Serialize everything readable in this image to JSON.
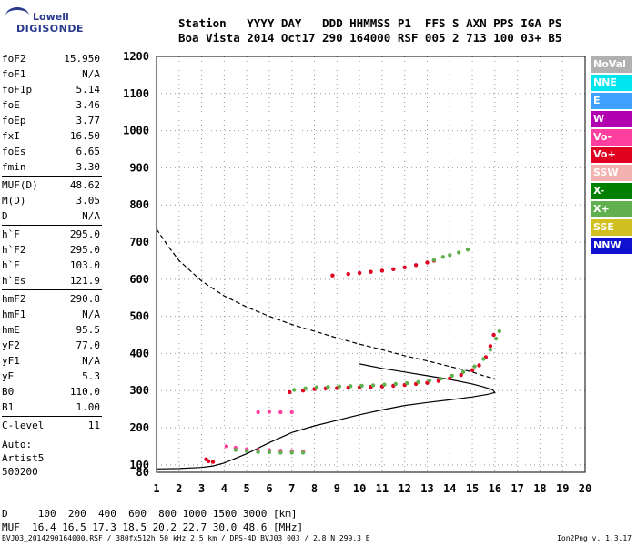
{
  "logo": {
    "line1": "Lowell",
    "line2": "DIGISONDE"
  },
  "header": {
    "line1": "Station   YYYY DAY   DDD HHMMSS P1  FFS S AXN PPS IGA PS",
    "line2": "Boa Vista 2014 Oct17 290 164000 RSF 005 2 713 100 03+ B5"
  },
  "params": [
    {
      "k": "foF2",
      "v": "15.950"
    },
    {
      "k": "foF1",
      "v": "N/A"
    },
    {
      "k": "foF1p",
      "v": "5.14"
    },
    {
      "k": "foE",
      "v": "3.46"
    },
    {
      "k": "foEp",
      "v": "3.77"
    },
    {
      "k": "fxI",
      "v": "16.50"
    },
    {
      "k": "foEs",
      "v": "6.65"
    },
    {
      "k": "fmin",
      "v": "3.30"
    },
    {
      "sep": true
    },
    {
      "k": "MUF(D)",
      "v": "48.62"
    },
    {
      "k": "M(D)",
      "v": "3.05"
    },
    {
      "k": "D",
      "v": "N/A"
    },
    {
      "sep": true
    },
    {
      "k": "h`F",
      "v": "295.0"
    },
    {
      "k": "h`F2",
      "v": "295.0"
    },
    {
      "k": "h`E",
      "v": "103.0"
    },
    {
      "k": "h`Es",
      "v": "121.9"
    },
    {
      "sep": true
    },
    {
      "k": "hmF2",
      "v": "290.8"
    },
    {
      "k": "hmF1",
      "v": "N/A"
    },
    {
      "k": "hmE",
      "v": "95.5"
    },
    {
      "k": "yF2",
      "v": "77.0"
    },
    {
      "k": "yF1",
      "v": "N/A"
    },
    {
      "k": "yE",
      "v": "5.3"
    },
    {
      "k": "B0",
      "v": "110.0"
    },
    {
      "k": "B1",
      "v": "1.00"
    },
    {
      "sep": true
    },
    {
      "k": "C-level",
      "v": "11"
    }
  ],
  "auto": [
    "Auto:",
    "Artist5",
    "500200"
  ],
  "legend": [
    {
      "label": "NoVal",
      "color": "#b0b0b0"
    },
    {
      "label": "NNE",
      "color": "#00e5ee"
    },
    {
      "label": "E",
      "color": "#3fa0ff"
    },
    {
      "label": "W",
      "color": "#b000b0"
    },
    {
      "label": "Vo-",
      "color": "#ff3fa0"
    },
    {
      "label": "Vo+",
      "color": "#e00020"
    },
    {
      "label": "SSW",
      "color": "#f5b0b0"
    },
    {
      "label": "X-",
      "color": "#008000"
    },
    {
      "label": "X+",
      "color": "#60b050"
    },
    {
      "label": "SSE",
      "color": "#d0c020"
    },
    {
      "label": "NNW",
      "color": "#1010d0"
    }
  ],
  "footer": {
    "line1": "D     100  200  400  600  800 1000 1500 3000 [km]",
    "line2": "MUF  16.4 16.5 17.3 18.5 20.2 22.7 30.0 48.6 [MHz]",
    "line3": "BVJ03_2014290164000.RSF / 380fx512h 50 kHz 2.5 km / DPS-4D BVJ03 003 / 2.8 N 299.3 E",
    "version": "Ion2Png v. 1.3.17"
  },
  "chart_data": {
    "type": "scatter",
    "xlim": [
      1,
      20
    ],
    "ylim": [
      80,
      1200
    ],
    "x_ticks": [
      1,
      2,
      3,
      4,
      5,
      6,
      7,
      8,
      9,
      10,
      11,
      12,
      13,
      14,
      15,
      16,
      17,
      18,
      19,
      20
    ],
    "y_ticks": [
      80,
      100,
      200,
      300,
      400,
      500,
      600,
      700,
      800,
      900,
      1000,
      1100,
      1200
    ],
    "grid": true,
    "series": [
      {
        "color": "#e00020",
        "points": [
          [
            6.9,
            296
          ],
          [
            7.5,
            300
          ],
          [
            8,
            304
          ],
          [
            8.5,
            306
          ],
          [
            9,
            307
          ],
          [
            9.5,
            308
          ],
          [
            10,
            309
          ],
          [
            10.5,
            310
          ],
          [
            11,
            311
          ],
          [
            11.5,
            313
          ],
          [
            12,
            315
          ],
          [
            12.5,
            318
          ],
          [
            13,
            321
          ],
          [
            13.5,
            326
          ],
          [
            14,
            333
          ],
          [
            14.5,
            342
          ],
          [
            15,
            355
          ],
          [
            15.3,
            368
          ],
          [
            15.6,
            390
          ],
          [
            15.8,
            420
          ],
          [
            15.95,
            450
          ]
        ]
      },
      {
        "color": "#60b050",
        "points": [
          [
            7.1,
            302
          ],
          [
            7.6,
            306
          ],
          [
            8.1,
            309
          ],
          [
            8.6,
            310
          ],
          [
            9.1,
            311
          ],
          [
            9.6,
            312
          ],
          [
            10.1,
            313
          ],
          [
            10.6,
            314
          ],
          [
            11.1,
            316
          ],
          [
            11.6,
            318
          ],
          [
            12.1,
            320
          ],
          [
            12.6,
            323
          ],
          [
            13.1,
            327
          ],
          [
            13.6,
            332
          ],
          [
            14.1,
            340
          ],
          [
            14.6,
            350
          ],
          [
            15.1,
            365
          ],
          [
            15.5,
            385
          ],
          [
            15.8,
            410
          ],
          [
            16.05,
            440
          ],
          [
            16.2,
            460
          ]
        ]
      },
      {
        "color": "#e00020",
        "points": [
          [
            8.8,
            610
          ],
          [
            9.5,
            614
          ],
          [
            10,
            617
          ],
          [
            10.5,
            620
          ],
          [
            11,
            623
          ],
          [
            11.5,
            627
          ],
          [
            12,
            632
          ],
          [
            12.5,
            638
          ],
          [
            13,
            645
          ],
          [
            13.3,
            650
          ]
        ]
      },
      {
        "color": "#60b050",
        "points": [
          [
            13.3,
            652
          ],
          [
            13.7,
            660
          ],
          [
            14,
            665
          ],
          [
            14.4,
            672
          ],
          [
            14.8,
            680
          ]
        ]
      },
      {
        "color": "#ff3fa0",
        "points": [
          [
            4.1,
            150
          ],
          [
            4.5,
            146
          ],
          [
            5,
            142
          ],
          [
            5.5,
            140
          ],
          [
            6,
            139
          ],
          [
            6.5,
            138
          ],
          [
            7,
            137
          ],
          [
            7.5,
            136
          ]
        ]
      },
      {
        "color": "#60b050",
        "points": [
          [
            4.5,
            140
          ],
          [
            5,
            137
          ],
          [
            5.5,
            135
          ],
          [
            6,
            134
          ],
          [
            6.5,
            133
          ],
          [
            7,
            133
          ],
          [
            7.5,
            133
          ]
        ]
      },
      {
        "color": "#ff3fa0",
        "points": [
          [
            5.5,
            242
          ],
          [
            6,
            243
          ],
          [
            6.5,
            242
          ],
          [
            7,
            242
          ]
        ]
      },
      {
        "color": "#e00020",
        "points": [
          [
            3.2,
            115
          ],
          [
            3.3,
            110
          ],
          [
            3.5,
            108
          ]
        ]
      }
    ],
    "lines": [
      {
        "style": "solid",
        "points": [
          [
            1,
            89
          ],
          [
            2,
            90
          ],
          [
            3,
            93
          ],
          [
            3.5,
            97
          ],
          [
            4,
            105
          ],
          [
            5,
            130
          ],
          [
            6,
            160
          ],
          [
            7,
            187
          ],
          [
            8,
            205
          ],
          [
            9,
            220
          ],
          [
            10,
            235
          ],
          [
            11,
            248
          ],
          [
            12,
            260
          ],
          [
            13,
            268
          ],
          [
            14,
            275
          ],
          [
            15,
            283
          ],
          [
            15.7,
            290
          ],
          [
            16,
            295
          ],
          [
            15.9,
            302
          ],
          [
            15.5,
            310
          ],
          [
            15,
            318
          ],
          [
            14,
            330
          ],
          [
            13,
            340
          ],
          [
            12,
            350
          ],
          [
            11,
            360
          ],
          [
            10,
            372
          ]
        ]
      },
      {
        "style": "dashed",
        "points": [
          [
            1,
            735
          ],
          [
            1.5,
            690
          ],
          [
            2,
            650
          ],
          [
            3,
            595
          ],
          [
            4,
            555
          ],
          [
            5,
            525
          ],
          [
            6,
            500
          ],
          [
            7,
            478
          ],
          [
            8,
            460
          ],
          [
            9,
            442
          ],
          [
            10,
            425
          ],
          [
            11,
            410
          ],
          [
            12,
            394
          ],
          [
            13,
            380
          ],
          [
            14,
            365
          ],
          [
            15,
            350
          ],
          [
            15.5,
            340
          ],
          [
            16,
            332
          ]
        ]
      }
    ]
  }
}
